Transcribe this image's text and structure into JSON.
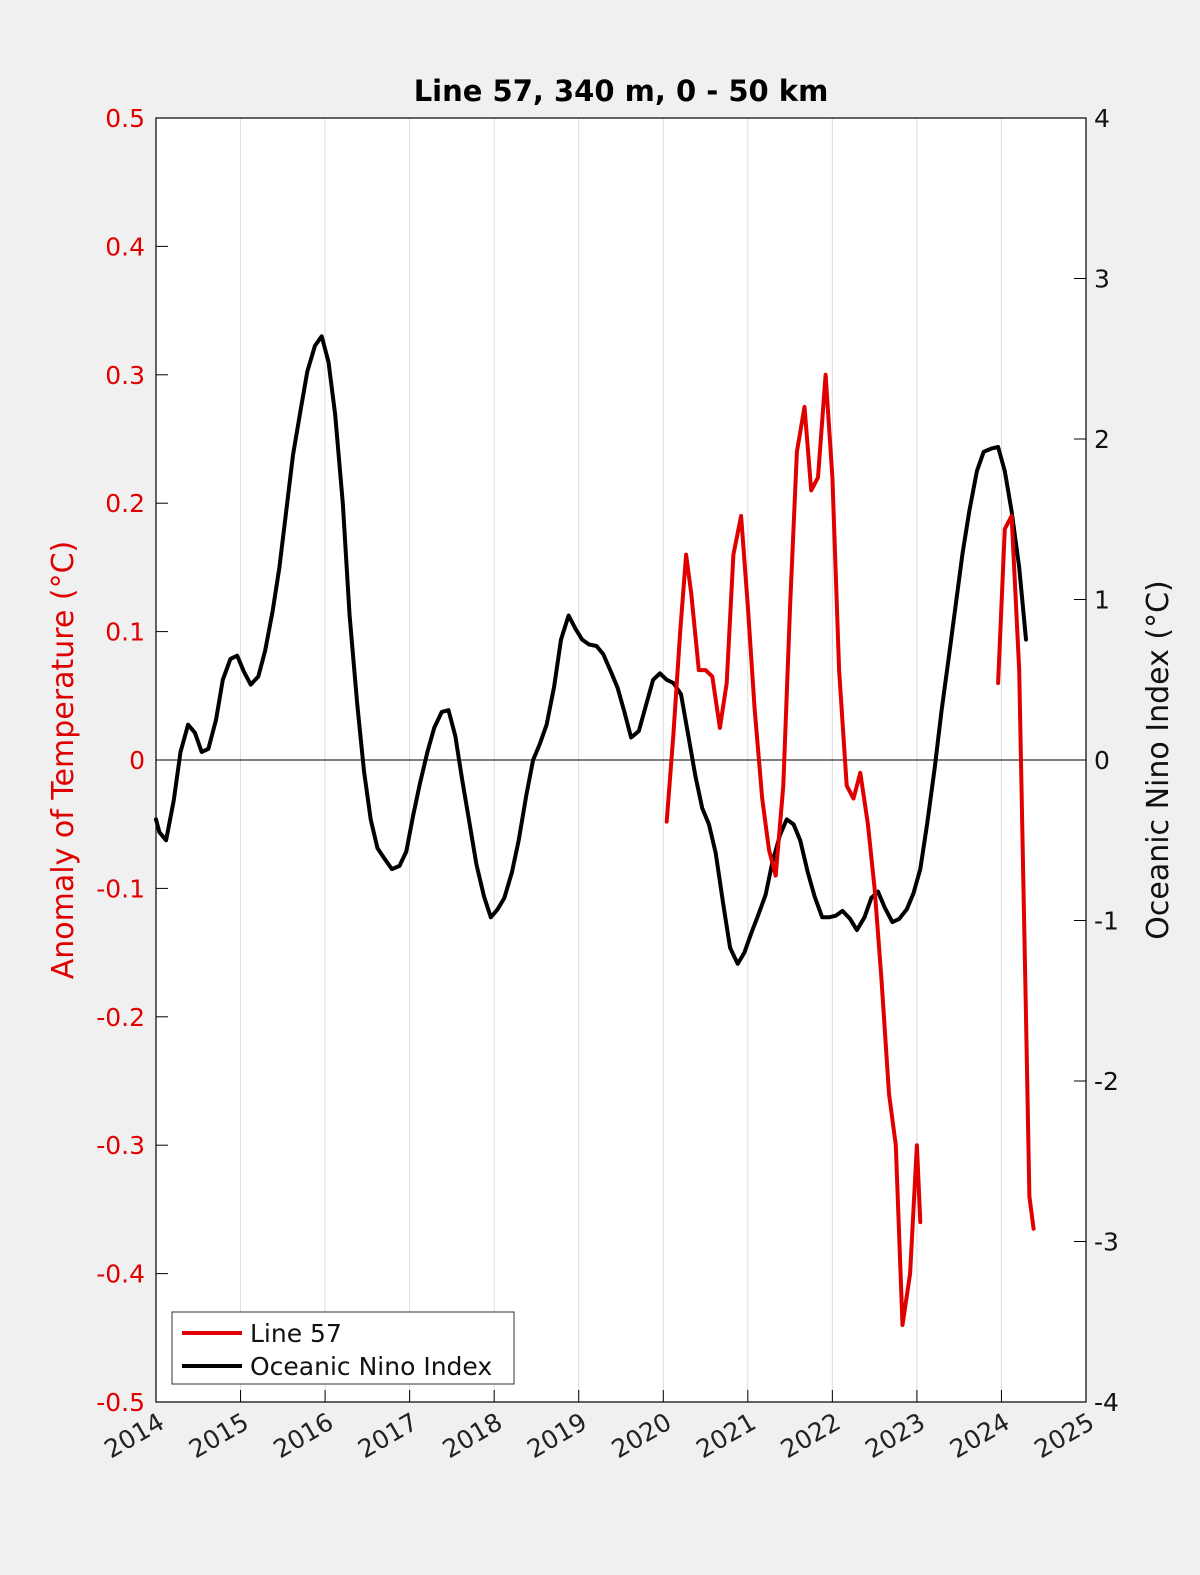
{
  "chart_data": {
    "type": "line",
    "title": "Line 57, 340 m, 0 - 50 km",
    "xlabel": "",
    "ylabel": "Anomaly of Temperature (°C)",
    "ylabel_right": "Oceanic Nino Index (°C)",
    "xlim": [
      2014,
      2025
    ],
    "ylim": [
      -0.5,
      0.5
    ],
    "ylim_right": [
      -4,
      4
    ],
    "x_ticks": [
      "2014",
      "2015",
      "2016",
      "2017",
      "2018",
      "2019",
      "2020",
      "2021",
      "2022",
      "2023",
      "2024",
      "2025"
    ],
    "y_ticks": [
      "-0.5",
      "-0.4",
      "-0.3",
      "-0.2",
      "-0.1",
      "0",
      "0.1",
      "0.2",
      "0.3",
      "0.4",
      "0.5"
    ],
    "y_ticks_right": [
      "-4",
      "-3",
      "-2",
      "-1",
      "0",
      "1",
      "2",
      "3",
      "4"
    ],
    "grid": "vertical",
    "zero_line": true,
    "legend_position": "bottom-left",
    "colors": {
      "line57": "#e00000",
      "oni": "#000000",
      "left_axis": "#e00000"
    },
    "series": [
      {
        "name": "Line 57",
        "axis": "left",
        "color": "#e00000",
        "segments": [
          [
            [
              2020.04,
              -0.048
            ],
            [
              2020.12,
              0.02
            ],
            [
              2020.2,
              0.1
            ],
            [
              2020.27,
              0.16
            ],
            [
              2020.33,
              0.13
            ],
            [
              2020.42,
              0.07
            ],
            [
              2020.5,
              0.07
            ],
            [
              2020.58,
              0.065
            ],
            [
              2020.67,
              0.025
            ],
            [
              2020.75,
              0.06
            ],
            [
              2020.83,
              0.16
            ],
            [
              2020.92,
              0.19
            ],
            [
              2021.0,
              0.12
            ],
            [
              2021.08,
              0.04
            ],
            [
              2021.17,
              -0.03
            ],
            [
              2021.25,
              -0.07
            ],
            [
              2021.33,
              -0.09
            ],
            [
              2021.42,
              -0.02
            ],
            [
              2021.5,
              0.12
            ],
            [
              2021.58,
              0.24
            ],
            [
              2021.67,
              0.275
            ],
            [
              2021.75,
              0.21
            ],
            [
              2021.83,
              0.22
            ],
            [
              2021.92,
              0.3
            ],
            [
              2022.0,
              0.22
            ],
            [
              2022.08,
              0.07
            ],
            [
              2022.17,
              -0.02
            ],
            [
              2022.25,
              -0.03
            ],
            [
              2022.33,
              -0.01
            ],
            [
              2022.42,
              -0.05
            ],
            [
              2022.5,
              -0.1
            ],
            [
              2022.58,
              -0.17
            ],
            [
              2022.67,
              -0.26
            ],
            [
              2022.75,
              -0.3
            ],
            [
              2022.83,
              -0.44
            ],
            [
              2022.92,
              -0.4
            ],
            [
              2023.0,
              -0.3
            ],
            [
              2023.04,
              -0.36
            ]
          ],
          [
            [
              2023.96,
              0.06
            ],
            [
              2024.04,
              0.18
            ],
            [
              2024.12,
              0.19
            ],
            [
              2024.21,
              0.07
            ],
            [
              2024.29,
              -0.2
            ],
            [
              2024.33,
              -0.34
            ],
            [
              2024.38,
              -0.365
            ]
          ]
        ]
      },
      {
        "name": "Oceanic Nino Index",
        "axis": "right",
        "color": "#000000",
        "segments": [
          [
            [
              2014.0,
              -0.37
            ],
            [
              2014.04,
              -0.45
            ],
            [
              2014.12,
              -0.5
            ],
            [
              2014.21,
              -0.25
            ],
            [
              2014.29,
              0.05
            ],
            [
              2014.38,
              0.22
            ],
            [
              2014.46,
              0.17
            ],
            [
              2014.54,
              0.05
            ],
            [
              2014.62,
              0.07
            ],
            [
              2014.71,
              0.25
            ],
            [
              2014.79,
              0.5
            ],
            [
              2014.88,
              0.63
            ],
            [
              2014.96,
              0.65
            ],
            [
              2015.04,
              0.55
            ],
            [
              2015.12,
              0.47
            ],
            [
              2015.21,
              0.52
            ],
            [
              2015.29,
              0.68
            ],
            [
              2015.38,
              0.93
            ],
            [
              2015.46,
              1.2
            ],
            [
              2015.54,
              1.55
            ],
            [
              2015.62,
              1.9
            ],
            [
              2015.71,
              2.18
            ],
            [
              2015.79,
              2.42
            ],
            [
              2015.88,
              2.58
            ],
            [
              2015.96,
              2.64
            ],
            [
              2016.04,
              2.48
            ],
            [
              2016.12,
              2.15
            ],
            [
              2016.21,
              1.6
            ],
            [
              2016.29,
              0.9
            ],
            [
              2016.38,
              0.35
            ],
            [
              2016.46,
              -0.07
            ],
            [
              2016.54,
              -0.37
            ],
            [
              2016.62,
              -0.55
            ],
            [
              2016.71,
              -0.62
            ],
            [
              2016.79,
              -0.68
            ],
            [
              2016.88,
              -0.66
            ],
            [
              2016.96,
              -0.57
            ],
            [
              2017.04,
              -0.35
            ],
            [
              2017.12,
              -0.15
            ],
            [
              2017.21,
              0.05
            ],
            [
              2017.29,
              0.2
            ],
            [
              2017.38,
              0.3
            ],
            [
              2017.46,
              0.31
            ],
            [
              2017.54,
              0.15
            ],
            [
              2017.62,
              -0.12
            ],
            [
              2017.71,
              -0.4
            ],
            [
              2017.79,
              -0.65
            ],
            [
              2017.88,
              -0.85
            ],
            [
              2017.96,
              -0.98
            ],
            [
              2018.04,
              -0.93
            ],
            [
              2018.12,
              -0.86
            ],
            [
              2018.21,
              -0.7
            ],
            [
              2018.29,
              -0.5
            ],
            [
              2018.38,
              -0.22
            ],
            [
              2018.46,
              0.0
            ],
            [
              2018.54,
              0.1
            ],
            [
              2018.62,
              0.22
            ],
            [
              2018.71,
              0.46
            ],
            [
              2018.79,
              0.75
            ],
            [
              2018.88,
              0.9
            ],
            [
              2018.96,
              0.82
            ],
            [
              2019.04,
              0.75
            ],
            [
              2019.12,
              0.72
            ],
            [
              2019.21,
              0.71
            ],
            [
              2019.29,
              0.66
            ],
            [
              2019.38,
              0.55
            ],
            [
              2019.46,
              0.45
            ],
            [
              2019.54,
              0.3
            ],
            [
              2019.62,
              0.14
            ],
            [
              2019.71,
              0.18
            ],
            [
              2019.79,
              0.33
            ],
            [
              2019.88,
              0.5
            ],
            [
              2019.96,
              0.54
            ],
            [
              2020.04,
              0.5
            ],
            [
              2020.12,
              0.48
            ],
            [
              2020.21,
              0.41
            ],
            [
              2020.29,
              0.17
            ],
            [
              2020.38,
              -0.1
            ],
            [
              2020.46,
              -0.3
            ],
            [
              2020.54,
              -0.4
            ],
            [
              2020.62,
              -0.58
            ],
            [
              2020.71,
              -0.9
            ],
            [
              2020.79,
              -1.17
            ],
            [
              2020.88,
              -1.27
            ],
            [
              2020.96,
              -1.2
            ],
            [
              2021.04,
              -1.08
            ],
            [
              2021.12,
              -0.97
            ],
            [
              2021.21,
              -0.84
            ],
            [
              2021.29,
              -0.64
            ],
            [
              2021.38,
              -0.47
            ],
            [
              2021.46,
              -0.37
            ],
            [
              2021.54,
              -0.4
            ],
            [
              2021.62,
              -0.5
            ],
            [
              2021.71,
              -0.7
            ],
            [
              2021.79,
              -0.85
            ],
            [
              2021.88,
              -0.98
            ],
            [
              2021.96,
              -0.98
            ],
            [
              2022.04,
              -0.97
            ],
            [
              2022.12,
              -0.94
            ],
            [
              2022.21,
              -0.99
            ],
            [
              2022.29,
              -1.06
            ],
            [
              2022.38,
              -0.98
            ],
            [
              2022.46,
              -0.86
            ],
            [
              2022.54,
              -0.82
            ],
            [
              2022.62,
              -0.92
            ],
            [
              2022.71,
              -1.01
            ],
            [
              2022.79,
              -0.99
            ],
            [
              2022.88,
              -0.93
            ],
            [
              2022.96,
              -0.83
            ],
            [
              2023.04,
              -0.68
            ],
            [
              2023.12,
              -0.4
            ],
            [
              2023.21,
              -0.05
            ],
            [
              2023.29,
              0.3
            ],
            [
              2023.38,
              0.65
            ],
            [
              2023.46,
              0.97
            ],
            [
              2023.54,
              1.29
            ],
            [
              2023.62,
              1.55
            ],
            [
              2023.71,
              1.8
            ],
            [
              2023.79,
              1.92
            ],
            [
              2023.88,
              1.94
            ],
            [
              2023.96,
              1.95
            ],
            [
              2024.04,
              1.8
            ],
            [
              2024.12,
              1.55
            ],
            [
              2024.21,
              1.2
            ],
            [
              2024.29,
              0.75
            ]
          ]
        ]
      }
    ]
  }
}
